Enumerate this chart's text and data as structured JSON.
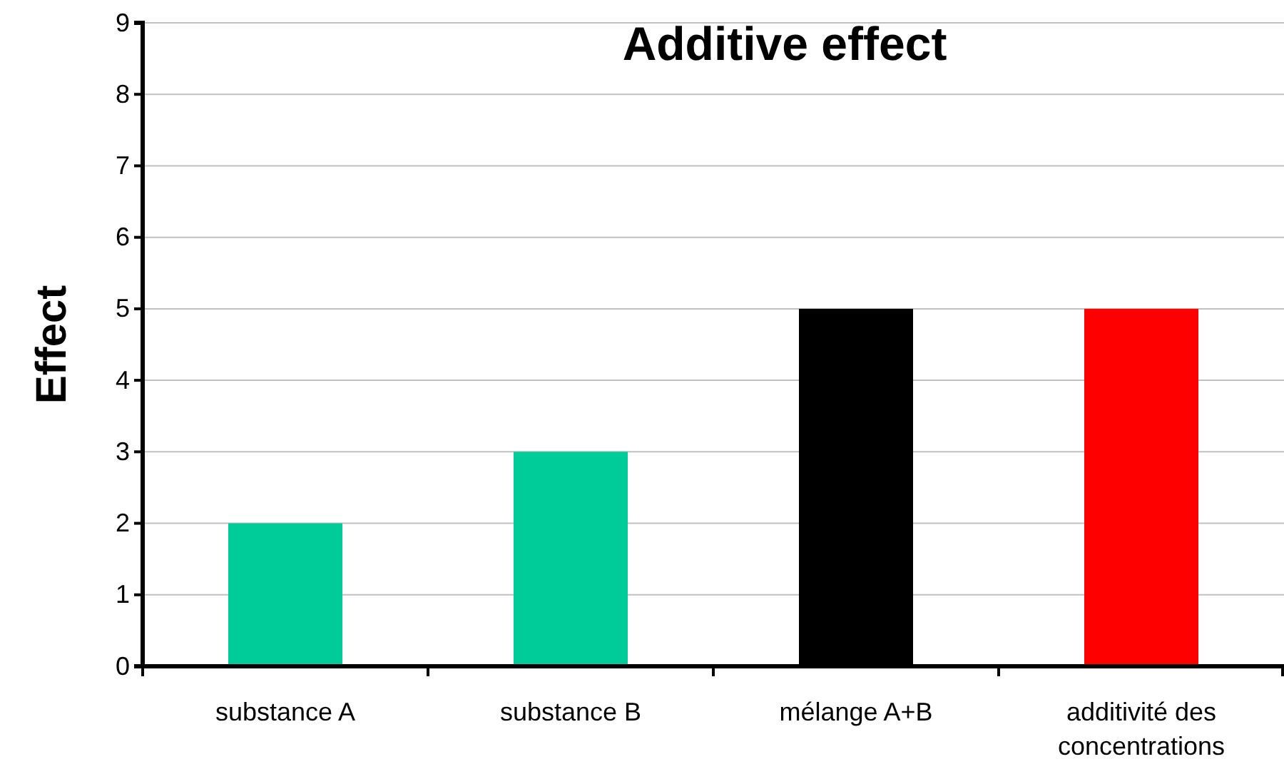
{
  "chart_data": {
    "type": "bar",
    "title": "Additive effect",
    "ylabel": "Effect",
    "categories": [
      "substance A",
      "substance B",
      "mélange A+B",
      "additivité des concentrations"
    ],
    "values": [
      2,
      3,
      5,
      5
    ],
    "colors": [
      "#00cc99",
      "#00cc99",
      "#000000",
      "#ff0000"
    ],
    "ylim": [
      0,
      9
    ],
    "yticks": [
      0,
      1,
      2,
      3,
      4,
      5,
      6,
      7,
      8,
      9
    ],
    "grid": "y"
  }
}
